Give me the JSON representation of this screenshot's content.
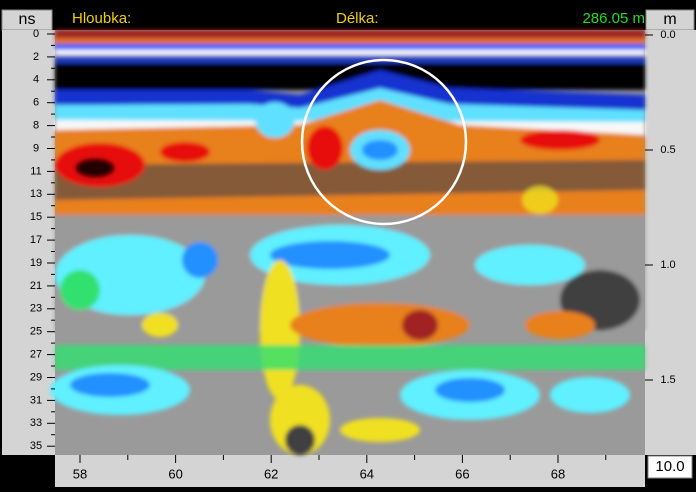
{
  "header": {
    "left_unit": "ns",
    "depth_label": "Hloubka:",
    "length_label": "Délka:",
    "length_value": "286.05 m",
    "right_unit": "m"
  },
  "left_axis": {
    "ticks": [
      "0",
      "2",
      "4",
      "6",
      "8",
      "9",
      "11",
      "13",
      "15",
      "17",
      "19",
      "21",
      "23",
      "25",
      "27",
      "29",
      "31",
      "33",
      "35"
    ]
  },
  "right_axis": {
    "ticks": [
      "0.0",
      "0.5",
      "1.0",
      "1.5"
    ]
  },
  "bottom_axis": {
    "ticks": [
      "58",
      "60",
      "62",
      "64",
      "66",
      "68"
    ]
  },
  "footer": {
    "scale": "10.0"
  }
}
